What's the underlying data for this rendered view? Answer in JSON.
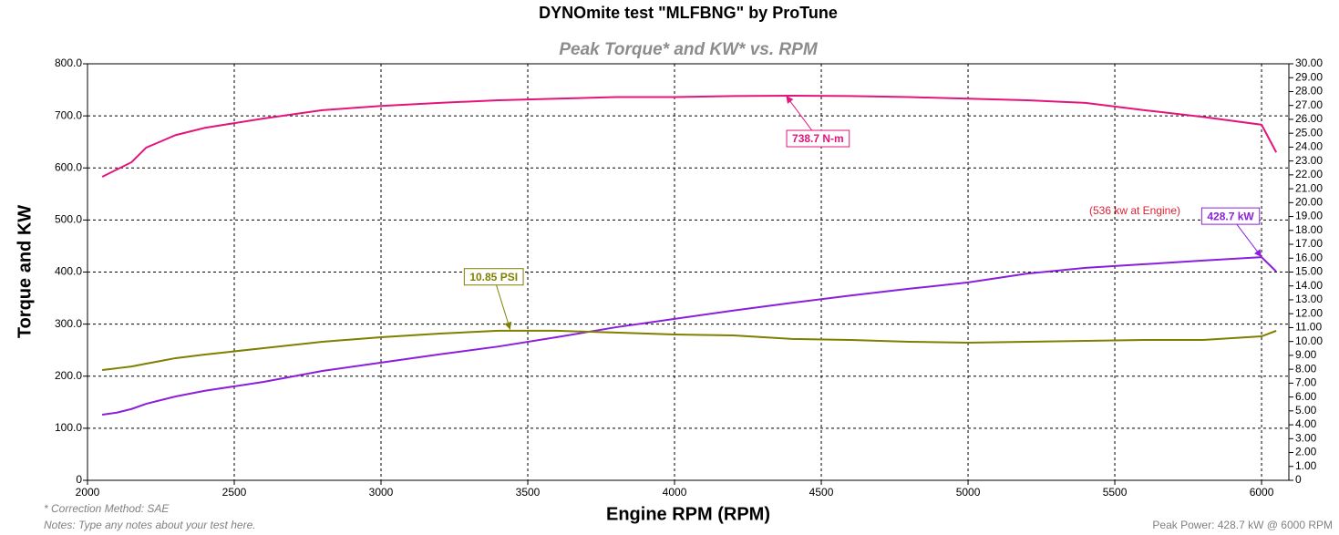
{
  "chart_data": {
    "type": "line",
    "title": "DYNOmite test \"MLFBNG\" by ProTune",
    "subtitle": "Peak Torque* and KW* vs. RPM",
    "x_label": "Engine RPM (RPM)",
    "y_label": "Torque and KW",
    "x": [
      2050,
      2100,
      2150,
      2200,
      2250,
      2300,
      2400,
      2600,
      2800,
      3000,
      3200,
      3400,
      3600,
      3800,
      4000,
      4200,
      4400,
      4600,
      4800,
      5000,
      5200,
      5400,
      5600,
      5800,
      6000,
      6050
    ],
    "series": [
      {
        "color": "#e3157c",
        "values": [
          583,
          597,
          611,
          639,
          651,
          663,
          677,
          695,
          711,
          719,
          725,
          730,
          733,
          736,
          736,
          738,
          738.7,
          738,
          736,
          733,
          730,
          725,
          711,
          698,
          683,
          630
        ]
      },
      {
        "color": "#8a1fdc",
        "values": [
          126,
          130,
          137,
          147,
          154,
          161,
          172,
          189,
          210,
          226,
          242,
          257,
          275,
          294,
          310,
          326,
          341,
          355,
          368,
          380,
          397,
          408,
          415,
          422,
          428.7,
          401
        ]
      },
      {
        "color": "#7f7f00",
        "axis": "y2",
        "values": [
          7.94,
          8.07,
          8.2,
          8.4,
          8.6,
          8.8,
          9.06,
          9.52,
          9.98,
          10.31,
          10.57,
          10.77,
          10.77,
          10.64,
          10.5,
          10.44,
          10.18,
          10.11,
          9.98,
          9.91,
          9.98,
          10.04,
          10.11,
          10.11,
          10.37,
          10.77
        ]
      }
    ],
    "xlim": [
      2000,
      6093
    ],
    "xticks": [
      2000,
      2500,
      3000,
      3500,
      4000,
      4500,
      5000,
      5500,
      6000
    ],
    "ylim": [
      0,
      800
    ],
    "yticks": [
      0,
      {
        "value": 100,
        "label": "100.0"
      },
      {
        "value": 200,
        "label": "200.0"
      },
      {
        "value": 300,
        "label": "300.0"
      },
      {
        "value": 400,
        "label": "400.0"
      },
      {
        "value": 500,
        "label": "500.0"
      },
      {
        "value": 600,
        "label": "600.0"
      },
      {
        "value": 700,
        "label": "700.0"
      },
      {
        "value": 800,
        "label": "800.0"
      }
    ],
    "y2lim": [
      0,
      30
    ],
    "y2ticks": [
      0,
      {
        "value": 1,
        "label": "1.00"
      },
      {
        "value": 2,
        "label": "2.00"
      },
      {
        "value": 3,
        "label": "3.00"
      },
      {
        "value": 4,
        "label": "4.00"
      },
      {
        "value": 5,
        "label": "5.00"
      },
      {
        "value": 6,
        "label": "6.00"
      },
      {
        "value": 7,
        "label": "7.00"
      },
      {
        "value": 8,
        "label": "8.00"
      },
      {
        "value": 9,
        "label": "9.00"
      },
      {
        "value": 10,
        "label": "10.00"
      },
      {
        "value": 11,
        "label": "11.00"
      },
      {
        "value": 12,
        "label": "12.00"
      },
      {
        "value": 13,
        "label": "13.00"
      },
      {
        "value": 14,
        "label": "14.00"
      },
      {
        "value": 15,
        "label": "15.00"
      },
      {
        "value": 16,
        "label": "16.00"
      },
      {
        "value": 17,
        "label": "17.00"
      },
      {
        "value": 18,
        "label": "18.00"
      },
      {
        "value": 19,
        "label": "19.00"
      },
      {
        "value": 20,
        "label": "20.00"
      },
      {
        "value": 21,
        "label": "21.00"
      },
      {
        "value": 22,
        "label": "22.00"
      },
      {
        "value": 23,
        "label": "23.00"
      },
      {
        "value": 24,
        "label": "24.00"
      },
      {
        "value": 25,
        "label": "25.00"
      },
      {
        "value": 26,
        "label": "26.00"
      },
      {
        "value": 27,
        "label": "27.00"
      },
      {
        "value": 28,
        "label": "28.00"
      },
      {
        "value": 29,
        "label": "29.00"
      },
      {
        "value": 30,
        "label": "30.00"
      }
    ],
    "grid": true,
    "annotations": [
      {
        "text": "738.7 N-m",
        "x": 4380,
        "y": 738.7,
        "color": "#e3157c"
      },
      {
        "text": "428.7 kW",
        "x": 6000,
        "y": 428.7,
        "color": "#8a1fdc"
      },
      {
        "text": "10.85 PSI",
        "x": 3440,
        "y": 10.85,
        "axis": "y2",
        "color": "#7f7f00"
      }
    ],
    "note": "(536 kw at Engine)",
    "footer_left": [
      "* Correction Method: SAE",
      "Notes: Type any notes about your test here."
    ],
    "footer_right": "Peak Power: 428.7 kW @ 6000 RPM"
  }
}
